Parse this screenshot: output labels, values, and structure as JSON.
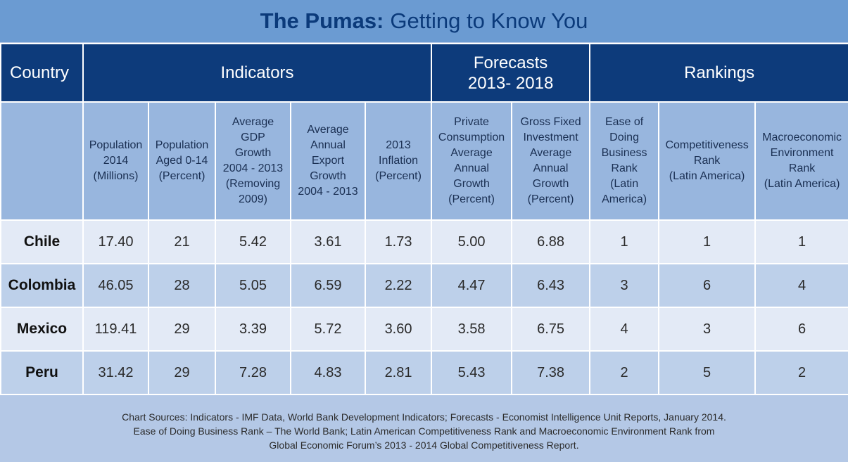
{
  "title": {
    "bold": "The Pumas:",
    "light": "Getting to Know You"
  },
  "groups": {
    "country": "Country",
    "indicators": "Indicators",
    "forecasts_line1": "Forecasts",
    "forecasts_line2": "2013- 2018",
    "rankings": "Rankings"
  },
  "columns": [
    [
      "Population",
      "2014",
      "(Millions)"
    ],
    [
      "Population",
      "Aged 0-14",
      "(Percent)"
    ],
    [
      "Average",
      "GDP",
      "Growth",
      "2004 - 2013",
      "(Removing",
      "2009)"
    ],
    [
      "Average",
      "Annual",
      "Export",
      "Growth",
      "2004 - 2013"
    ],
    [
      "2013",
      "Inflation",
      "(Percent)"
    ],
    [
      "Private",
      "Consumption",
      "Average",
      "Annual",
      "Growth",
      "(Percent)"
    ],
    [
      "Gross Fixed",
      "Investment",
      "Average",
      "Annual",
      "Growth",
      "(Percent)"
    ],
    [
      "Ease of",
      "Doing",
      "Business",
      "Rank",
      "(Latin",
      "America)"
    ],
    [
      "Competitiveness",
      "Rank",
      "(Latin America)"
    ],
    [
      "Macroeconomic",
      "Environment",
      "Rank",
      "(Latin America)"
    ]
  ],
  "rows": [
    {
      "country": "Chile",
      "values": [
        "17.40",
        "21",
        "5.42",
        "3.61",
        "1.73",
        "5.00",
        "6.88",
        "1",
        "1",
        "1"
      ]
    },
    {
      "country": "Colombia",
      "values": [
        "46.05",
        "28",
        "5.05",
        "6.59",
        "2.22",
        "4.47",
        "6.43",
        "3",
        "6",
        "4"
      ]
    },
    {
      "country": "Mexico",
      "values": [
        "119.41",
        "29",
        "3.39",
        "5.72",
        "3.60",
        "3.58",
        "6.75",
        "4",
        "3",
        "6"
      ]
    },
    {
      "country": "Peru",
      "values": [
        "31.42",
        "29",
        "7.28",
        "4.83",
        "2.81",
        "5.43",
        "7.38",
        "2",
        "5",
        "2"
      ]
    }
  ],
  "sources": [
    "Chart Sources: Indicators - IMF Data, World Bank Development Indicators; Forecasts - Economist Intelligence Unit Reports, January 2014.",
    "Ease of Doing Business Rank – The World Bank; Latin American Competitiveness Rank and Macroeconomic Environment Rank from",
    "Global Economic Forum’s 2013 - 2014 Global Competitiveness Report."
  ]
}
